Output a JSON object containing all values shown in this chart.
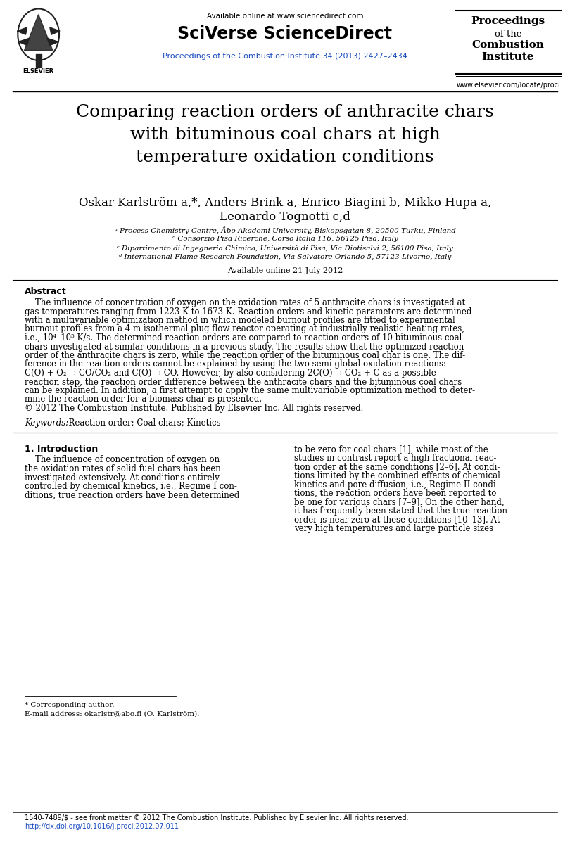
{
  "header_available_online": "Available online at www.sciencedirect.com",
  "header_journal_bold": "SciVerse ScienceDirect",
  "header_journal_link": "Proceedings of the Combustion Institute 34 (2013) 2427–2434",
  "header_right_line1": "Proceedings",
  "header_right_line2": "of the",
  "header_right_line3": "Combustion",
  "header_right_line4": "Institute",
  "header_right_url": "www.elsevier.com/locate/proci",
  "title": "Comparing reaction orders of anthracite chars\nwith bituminous coal chars at high\ntemperature oxidation conditions",
  "author_line1": "Oskar Karlström a,*, Anders Brink a, Enrico Biagini b, Mikko Hupa a,",
  "author_line2": "Leonardo Tognotti c,d",
  "affil_a": "ᵃ Process Chemistry Centre, Åbo Akademi University, Biskopsgatan 8, 20500 Turku, Finland",
  "affil_b": "ᵇ Consorzio Pisa Ricerche, Corso Italia 116, 56125 Pisa, Italy",
  "affil_c": "ᶜ Dipartimento di Ingegneria Chimica, Università di Pisa, Via Diotisalvi 2, 56100 Pisa, Italy",
  "affil_d": "ᵈ International Flame Research Foundation, Via Salvatore Orlando 5, 57123 Livorno, Italy",
  "available_online": "Available online 21 July 2012",
  "abstract_heading": "Abstract",
  "abstract_indent": "    The influence of concentration of oxygen on the oxidation rates of 5 anthracite chars is investigated at",
  "abstract_lines": [
    "    The influence of concentration of oxygen on the oxidation rates of 5 anthracite chars is investigated at",
    "gas temperatures ranging from 1223 K to 1673 K. Reaction orders and kinetic parameters are determined",
    "with a multivariable optimization method in which modeled burnout profiles are fitted to experimental",
    "burnout profiles from a 4 m isothermal plug flow reactor operating at industrially realistic heating rates,",
    "i.e., 10⁴–10⁵ K/s. The determined reaction orders are compared to reaction orders of 10 bituminous coal",
    "chars investigated at similar conditions in a previous study. The results show that the optimized reaction",
    "order of the anthracite chars is zero, while the reaction order of the bituminous coal char is one. The dif-",
    "ference in the reaction orders cannot be explained by using the two semi-global oxidation reactions:",
    "C(O) + O₂ → CO/CO₂ and C(O) → CO. However, by also considering 2C(O) → CO₂ + C as a possible",
    "reaction step, the reaction order difference between the anthracite chars and the bituminous coal chars",
    "can be explained. In addition, a first attempt to apply the same multivariable optimization method to deter-",
    "mine the reaction order for a biomass char is presented.",
    "© 2012 The Combustion Institute. Published by Elsevier Inc. All rights reserved."
  ],
  "keywords_label": "Keywords:",
  "keywords_text": "  Reaction order; Coal chars; Kinetics",
  "section1_heading": "1. Introduction",
  "section1_col1_indent": "    The influence of concentration of oxygen on",
  "section1_col1_lines": [
    "    The influence of concentration of oxygen on",
    "the oxidation rates of solid fuel chars has been",
    "investigated extensively. At conditions entirely",
    "controlled by chemical kinetics, i.e., Regime I con-",
    "ditions, true reaction orders have been determined"
  ],
  "section1_col2_lines": [
    "to be zero for coal chars [1], while most of the",
    "studies in contrast report a high fractional reac-",
    "tion order at the same conditions [2–6]. At condi-",
    "tions limited by the combined effects of chemical",
    "kinetics and pore diffusion, i.e., Regime II condi-",
    "tions, the reaction orders have been reported to",
    "be one for various chars [7–9]. On the other hand,",
    "it has frequently been stated that the true reaction",
    "order is near zero at these conditions [10–13]. At",
    "very high temperatures and large particle sizes"
  ],
  "footnote_star": "* Corresponding author.",
  "footnote_email": "E-mail address: okarlstr@abo.fi (O. Karlström).",
  "footer_issn": "1540-7489/$ - see front matter © 2012 The Combustion Institute. Published by Elsevier Inc. All rights reserved.",
  "footer_doi": "http://dx.doi.org/10.1016/j.proci.2012.07.011",
  "bg_color": "#ffffff",
  "text_color": "#000000",
  "blue_link_color": "#1a4cc0"
}
